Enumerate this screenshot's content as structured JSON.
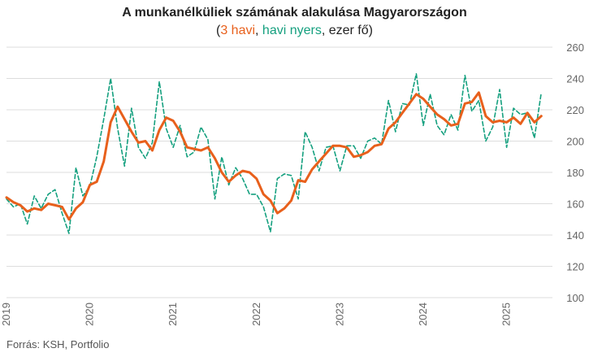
{
  "chart_data": {
    "type": "line",
    "title": "A munkanélküliek számának alakulása Magyarországon",
    "subtitle": {
      "open": "(",
      "series1_label": "3 havi",
      "sep1": ", ",
      "series2_label": "havi nyers",
      "rest": ", ezer fő)"
    },
    "source": "Forrás: KSH, Portfolio",
    "ylim": [
      100,
      260
    ],
    "yticks": [
      100,
      120,
      140,
      160,
      180,
      200,
      220,
      240,
      260
    ],
    "xlim": [
      2019.0,
      2025.55
    ],
    "xticks": [
      "2019",
      "2020",
      "2021",
      "2022",
      "2023",
      "2024",
      "2025"
    ],
    "grid": true,
    "colors": {
      "three_month": "#e8601c",
      "monthly": "#15a07f",
      "grid": "#dddddd"
    },
    "series": [
      {
        "name": "3 havi",
        "style": "solid",
        "start": 2019.0,
        "step_months": 1,
        "values": [
          164,
          161,
          159,
          155,
          157,
          156,
          160,
          159,
          158,
          150,
          157,
          161,
          172,
          174,
          187,
          212,
          222,
          214,
          206,
          199,
          200,
          194,
          207,
          215,
          213,
          206,
          196,
          195,
          194,
          196,
          189,
          180,
          174,
          178,
          181,
          180,
          176,
          166,
          162,
          154,
          157,
          162,
          175,
          174,
          182,
          187,
          192,
          197,
          197,
          196,
          190,
          191,
          193,
          197,
          198,
          208,
          212,
          218,
          224,
          230,
          227,
          222,
          217,
          214,
          210,
          211,
          224,
          225,
          231,
          216,
          212,
          213,
          212,
          215,
          211,
          218,
          212,
          216
        ]
      },
      {
        "name": "havi nyers",
        "style": "dashed",
        "start": 2019.0,
        "step_months": 1,
        "values": [
          163,
          158,
          160,
          147,
          165,
          157,
          166,
          169,
          154,
          141,
          183,
          165,
          171,
          190,
          214,
          240,
          208,
          184,
          221,
          196,
          189,
          199,
          238,
          208,
          196,
          210,
          190,
          193,
          209,
          201,
          163,
          190,
          172,
          183,
          176,
          166,
          166,
          158,
          142,
          176,
          179,
          178,
          163,
          206,
          196,
          181,
          196,
          197,
          181,
          197,
          197,
          189,
          200,
          202,
          198,
          226,
          206,
          224,
          223,
          243,
          210,
          230,
          210,
          204,
          217,
          207,
          242,
          219,
          226,
          200,
          209,
          233,
          196,
          221,
          217,
          218,
          202,
          231
        ]
      }
    ]
  }
}
